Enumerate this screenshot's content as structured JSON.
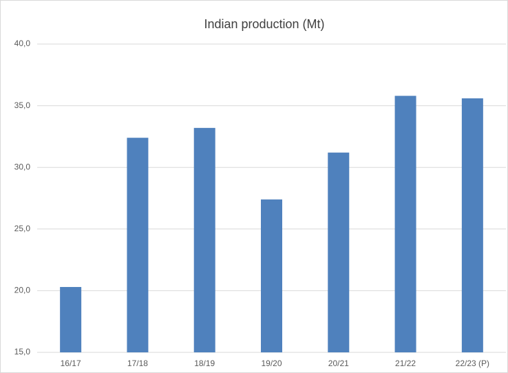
{
  "chart_data": {
    "type": "bar",
    "title": "Indian production (Mt)",
    "categories": [
      "16/17",
      "17/18",
      "18/19",
      "19/20",
      "20/21",
      "21/22",
      "22/23 (P)"
    ],
    "values": [
      20.3,
      32.4,
      33.2,
      27.4,
      31.2,
      35.8,
      35.6
    ],
    "color": "#4f81bd",
    "ylim": [
      15,
      40
    ],
    "yticks": [
      {
        "value": 15,
        "label": "15,0"
      },
      {
        "value": 20,
        "label": "20,0"
      },
      {
        "value": 25,
        "label": "25,0"
      },
      {
        "value": 30,
        "label": "30,0"
      },
      {
        "value": 35,
        "label": "35,0"
      },
      {
        "value": 40,
        "label": "40,0"
      }
    ],
    "grid": true
  }
}
